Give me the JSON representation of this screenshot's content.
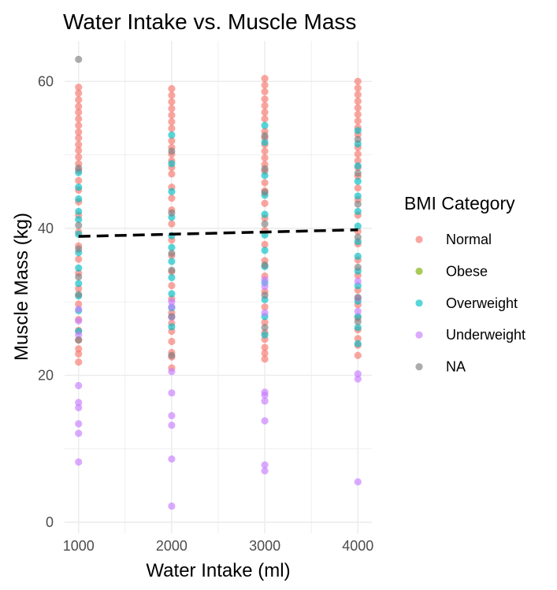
{
  "chart_data": {
    "type": "scatter",
    "title": "Water Intake vs. Muscle Mass",
    "xlabel": "Water Intake (ml)",
    "ylabel": "Muscle Mass (kg)",
    "xlim": [
      850,
      4150
    ],
    "ylim": [
      -1.5,
      65.5
    ],
    "x_ticks": [
      1000,
      2000,
      3000,
      4000
    ],
    "x_tick_labels": [
      "1000",
      "2000",
      "3000",
      "4000"
    ],
    "y_ticks": [
      0,
      20,
      40,
      60
    ],
    "y_tick_labels": [
      "0",
      "20",
      "40",
      "60"
    ],
    "grid": true,
    "point_alpha": 0.65,
    "legend": {
      "title": "BMI Category",
      "position": "right",
      "entries": [
        {
          "label": "Normal",
          "color": "#F8766D"
        },
        {
          "label": "Obese",
          "color": "#7CAE00"
        },
        {
          "label": "Overweight",
          "color": "#00BFC4"
        },
        {
          "label": "Underweight",
          "color": "#C77CFF"
        },
        {
          "label": "NA",
          "color": "#7F7F7F"
        }
      ]
    },
    "series": [
      {
        "name": "Normal",
        "color": "#F8766D",
        "points": [
          [
            1000,
            59.2
          ],
          [
            1000,
            58.4
          ],
          [
            1000,
            57.5
          ],
          [
            1000,
            56.6
          ],
          [
            1000,
            55.8
          ],
          [
            1000,
            54.9
          ],
          [
            1000,
            54.0
          ],
          [
            1000,
            53.1
          ],
          [
            1000,
            52.3
          ],
          [
            1000,
            51.4
          ],
          [
            1000,
            50.6
          ],
          [
            1000,
            49.7
          ],
          [
            1000,
            48.8
          ],
          [
            1000,
            47.9
          ],
          [
            1000,
            46.5
          ],
          [
            1000,
            45.2
          ],
          [
            1000,
            43.6
          ],
          [
            1000,
            41.8
          ],
          [
            1000,
            39.5
          ],
          [
            1000,
            37.6
          ],
          [
            1000,
            35.8
          ],
          [
            1000,
            33.9
          ],
          [
            1000,
            31.8
          ],
          [
            1000,
            29.7
          ],
          [
            1000,
            27.6
          ],
          [
            1000,
            26.1
          ],
          [
            1000,
            24.8
          ],
          [
            1000,
            23.6
          ],
          [
            1000,
            22.9
          ],
          [
            1000,
            21.8
          ],
          [
            2000,
            59.0
          ],
          [
            2000,
            58.1
          ],
          [
            2000,
            57.2
          ],
          [
            2000,
            56.3
          ],
          [
            2000,
            55.4
          ],
          [
            2000,
            54.5
          ],
          [
            2000,
            53.6
          ],
          [
            2000,
            51.9
          ],
          [
            2000,
            51.0
          ],
          [
            2000,
            50.1
          ],
          [
            2000,
            49.2
          ],
          [
            2000,
            48.3
          ],
          [
            2000,
            47.4
          ],
          [
            2000,
            45.6
          ],
          [
            2000,
            44.1
          ],
          [
            2000,
            42.5
          ],
          [
            2000,
            40.6
          ],
          [
            2000,
            38.4
          ],
          [
            2000,
            36.3
          ],
          [
            2000,
            34.1
          ],
          [
            2000,
            32.2
          ],
          [
            2000,
            30.4
          ],
          [
            2000,
            28.5
          ],
          [
            2000,
            27.1
          ],
          [
            2000,
            26.0
          ],
          [
            2000,
            24.6
          ],
          [
            2000,
            23.1
          ],
          [
            2000,
            22.5
          ],
          [
            2000,
            21.0
          ],
          [
            3000,
            60.4
          ],
          [
            3000,
            59.5
          ],
          [
            3000,
            58.6
          ],
          [
            3000,
            57.6
          ],
          [
            3000,
            56.7
          ],
          [
            3000,
            55.8
          ],
          [
            3000,
            54.9
          ],
          [
            3000,
            53.2
          ],
          [
            3000,
            52.3
          ],
          [
            3000,
            51.4
          ],
          [
            3000,
            50.5
          ],
          [
            3000,
            49.6
          ],
          [
            3000,
            48.7
          ],
          [
            3000,
            47.8
          ],
          [
            3000,
            46.2
          ],
          [
            3000,
            45.1
          ],
          [
            3000,
            43.4
          ],
          [
            3000,
            41.4
          ],
          [
            3000,
            39.7
          ],
          [
            3000,
            37.8
          ],
          [
            3000,
            35.6
          ],
          [
            3000,
            33.5
          ],
          [
            3000,
            31.4
          ],
          [
            3000,
            29.3
          ],
          [
            3000,
            27.2
          ],
          [
            3000,
            25.8
          ],
          [
            3000,
            24.9
          ],
          [
            3000,
            23.8
          ],
          [
            3000,
            23.0
          ],
          [
            3000,
            22.2
          ],
          [
            4000,
            60.0
          ],
          [
            4000,
            59.1
          ],
          [
            4000,
            58.2
          ],
          [
            4000,
            57.3
          ],
          [
            4000,
            56.4
          ],
          [
            4000,
            55.5
          ],
          [
            4000,
            54.6
          ],
          [
            4000,
            53.7
          ],
          [
            4000,
            52.8
          ],
          [
            4000,
            51.0
          ],
          [
            4000,
            50.1
          ],
          [
            4000,
            49.2
          ],
          [
            4000,
            48.3
          ],
          [
            4000,
            47.1
          ],
          [
            4000,
            45.5
          ],
          [
            4000,
            43.9
          ],
          [
            4000,
            41.8
          ],
          [
            4000,
            39.6
          ],
          [
            4000,
            37.9
          ],
          [
            4000,
            35.7
          ],
          [
            4000,
            33.6
          ],
          [
            4000,
            31.6
          ],
          [
            4000,
            29.6
          ],
          [
            4000,
            27.8
          ],
          [
            4000,
            26.2
          ],
          [
            4000,
            25.0
          ],
          [
            4000,
            24.1
          ],
          [
            4000,
            22.7
          ]
        ]
      },
      {
        "name": "Overweight",
        "color": "#00BFC4",
        "points": [
          [
            1000,
            47.6
          ],
          [
            1000,
            45.6
          ],
          [
            1000,
            44.0
          ],
          [
            1000,
            42.3
          ],
          [
            1000,
            41.2
          ],
          [
            1000,
            39.2
          ],
          [
            1000,
            36.7
          ],
          [
            1000,
            34.6
          ],
          [
            1000,
            32.5
          ],
          [
            1000,
            30.8
          ],
          [
            1000,
            28.8
          ],
          [
            1000,
            26.0
          ],
          [
            2000,
            52.7
          ],
          [
            2000,
            48.8
          ],
          [
            2000,
            45.0
          ],
          [
            2000,
            41.5
          ],
          [
            2000,
            39.0
          ],
          [
            2000,
            37.4
          ],
          [
            2000,
            35.5
          ],
          [
            2000,
            33.3
          ],
          [
            2000,
            31.1
          ],
          [
            2000,
            29.2
          ],
          [
            2000,
            26.6
          ],
          [
            3000,
            54.0
          ],
          [
            3000,
            51.7
          ],
          [
            3000,
            47.2
          ],
          [
            3000,
            44.5
          ],
          [
            3000,
            41.9
          ],
          [
            3000,
            39.1
          ],
          [
            3000,
            37.0
          ],
          [
            3000,
            34.8
          ],
          [
            3000,
            32.6
          ],
          [
            3000,
            30.3
          ],
          [
            3000,
            28.0
          ],
          [
            3000,
            25.5
          ],
          [
            4000,
            53.3
          ],
          [
            4000,
            51.5
          ],
          [
            4000,
            48.5
          ],
          [
            4000,
            46.4
          ],
          [
            4000,
            44.4
          ],
          [
            4000,
            42.3
          ],
          [
            4000,
            40.3
          ],
          [
            4000,
            38.2
          ],
          [
            4000,
            36.2
          ],
          [
            4000,
            34.2
          ],
          [
            4000,
            32.2
          ],
          [
            4000,
            30.1
          ],
          [
            4000,
            28.0
          ],
          [
            4000,
            26.5
          ],
          [
            4000,
            24.3
          ]
        ]
      },
      {
        "name": "Underweight",
        "color": "#C77CFF",
        "points": [
          [
            1000,
            29.0
          ],
          [
            1000,
            27.4
          ],
          [
            1000,
            25.5
          ],
          [
            1000,
            18.6
          ],
          [
            1000,
            16.3
          ],
          [
            1000,
            15.6
          ],
          [
            1000,
            13.4
          ],
          [
            1000,
            12.1
          ],
          [
            1000,
            8.2
          ],
          [
            2000,
            30.0
          ],
          [
            2000,
            29.3
          ],
          [
            2000,
            27.9
          ],
          [
            2000,
            20.5
          ],
          [
            2000,
            17.6
          ],
          [
            2000,
            14.5
          ],
          [
            2000,
            13.2
          ],
          [
            2000,
            8.6
          ],
          [
            2000,
            2.2
          ],
          [
            3000,
            33.0
          ],
          [
            3000,
            32.1
          ],
          [
            3000,
            28.5
          ],
          [
            3000,
            17.7
          ],
          [
            3000,
            17.3
          ],
          [
            3000,
            16.5
          ],
          [
            3000,
            13.8
          ],
          [
            3000,
            7.8
          ],
          [
            3000,
            7.0
          ],
          [
            4000,
            32.8
          ],
          [
            4000,
            30.5
          ],
          [
            4000,
            28.7
          ],
          [
            4000,
            20.2
          ],
          [
            4000,
            19.5
          ],
          [
            4000,
            5.5
          ]
        ]
      },
      {
        "name": "NA",
        "color": "#7F7F7F",
        "points": [
          [
            1000,
            63.0
          ],
          [
            1000,
            48.2
          ],
          [
            1000,
            40.4
          ],
          [
            1000,
            37.2
          ],
          [
            1000,
            33.4
          ],
          [
            1000,
            31.0
          ],
          [
            1000,
            24.8
          ],
          [
            2000,
            50.5
          ],
          [
            2000,
            42.1
          ],
          [
            2000,
            36.6
          ],
          [
            2000,
            34.3
          ],
          [
            2000,
            28.0
          ],
          [
            2000,
            22.7
          ],
          [
            3000,
            52.6
          ],
          [
            3000,
            48.1
          ],
          [
            3000,
            44.9
          ],
          [
            3000,
            40.6
          ],
          [
            3000,
            35.0
          ],
          [
            3000,
            30.9
          ],
          [
            3000,
            26.5
          ],
          [
            4000,
            52.1
          ],
          [
            4000,
            47.5
          ],
          [
            4000,
            43.3
          ],
          [
            4000,
            38.8
          ],
          [
            4000,
            34.7
          ],
          [
            4000,
            30.6
          ],
          [
            4000,
            27.3
          ]
        ]
      }
    ],
    "trend_line": {
      "style": "dashed",
      "color": "#000000",
      "x": [
        1000,
        4000
      ],
      "y": [
        38.9,
        39.8
      ]
    }
  }
}
